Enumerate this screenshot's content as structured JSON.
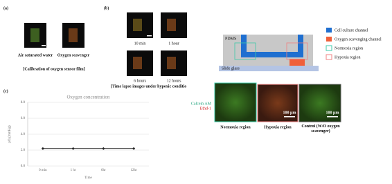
{
  "panel_a": {
    "label": "(a)",
    "images": [
      "Air saturated water",
      "Oxygen scavenger"
    ],
    "caption": "[Calibration of oxygen sensor film]"
  },
  "panel_b": {
    "label": "(b)",
    "images": [
      "10 min",
      "1 hour",
      "6 hours",
      "12 hours"
    ],
    "caption": "[Time lapse images under hypoxic conditio"
  },
  "panel_c": {
    "label": "(c)"
  },
  "chart_data": {
    "type": "line",
    "title": "Oxygen concentration",
    "x_label": "Time",
    "y_label": "pO₂(mmHg)",
    "categories": [
      "0 min",
      "1 hr",
      "6hr",
      "12hr"
    ],
    "series": [
      {
        "name": "pO₂",
        "color": "#222222",
        "values": [
          2.2,
          2.2,
          2.2,
          2.2
        ]
      }
    ],
    "ylim": [
      0,
      8
    ],
    "yticks": [
      {
        "value": 0,
        "label": "0.0"
      },
      {
        "value": 2,
        "label": "2.0"
      },
      {
        "value": 4,
        "label": "4.0"
      },
      {
        "value": 6,
        "label": "6.0"
      },
      {
        "value": 8,
        "label": "8.0"
      }
    ],
    "grid": true
  },
  "panel_d": {
    "pdms": "PDMS",
    "slide": "Slide glass",
    "legend": [
      "Cell culture channel",
      "Oxygen scavenging channel",
      "Normoxia region",
      "Hypoxia region"
    ],
    "stain_live": "Calcein AM",
    "stain_dead": "Ethd-1",
    "scale": [
      "100 μm",
      "100 μm"
    ],
    "regions": [
      "Normoxia region",
      "Hypoxia region",
      "Control (W/O oxygen scavenger)"
    ]
  }
}
